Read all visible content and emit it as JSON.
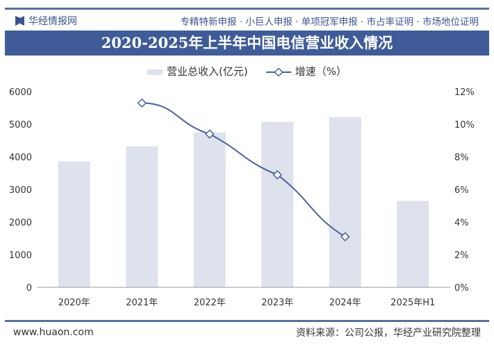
{
  "header": {
    "brand": "华经情报网",
    "services": "专精特新申报 · 小巨人申报 · 单项冠军申报 · 市占率证明 · 市场地位证明"
  },
  "footer": {
    "url": "www.huaon.com",
    "source": "资料来源：公司公报，华经产业研究院整理"
  },
  "colors": {
    "bar": "#dde2ec",
    "line": "#4a6299",
    "title_bg": "#3f5c98"
  },
  "chart_data": {
    "type": "bar+line",
    "title": "2020-2025年上半年中国电信营业收入情况",
    "categories": [
      "2020年",
      "2021年",
      "2022年",
      "2023年",
      "2024年",
      "2025年H1"
    ],
    "series": [
      {
        "name": "营业总收入(亿元)",
        "type": "bar",
        "axis": "left",
        "values": [
          3860,
          4320,
          4750,
          5070,
          5220,
          2650
        ]
      },
      {
        "name": "增速（%）",
        "type": "line",
        "axis": "right",
        "values": [
          null,
          11.3,
          9.4,
          6.9,
          3.1,
          null
        ]
      }
    ],
    "ylim_left": [
      0,
      6000
    ],
    "yticks_left": [
      "0",
      "1000",
      "2000",
      "3000",
      "4000",
      "5000",
      "6000"
    ],
    "ylim_right": [
      0,
      12
    ],
    "yticks_right": [
      "0%",
      "2%",
      "4%",
      "6%",
      "8%",
      "10%",
      "12%"
    ],
    "grid": false,
    "legend": "top"
  }
}
